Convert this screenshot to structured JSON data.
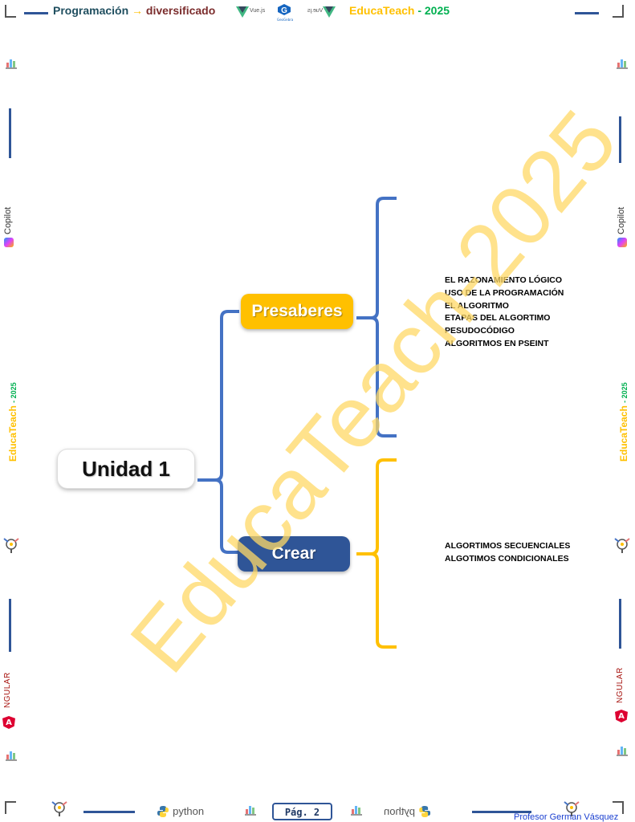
{
  "header": {
    "course": "Programación",
    "arrow": "→",
    "subject": "diversificado",
    "vue_text": "Vue.js",
    "vue_text_mirrored": "Vue.js",
    "brand": "EducaTeach",
    "brand_dash": "-",
    "year": "2025"
  },
  "side": {
    "copilot": "Copilot",
    "brand": "EducaTeach",
    "year": "- 2025",
    "angular": "NGULAR",
    "angular_letter": "A"
  },
  "mindmap": {
    "root": "Unidad 1",
    "branches": [
      {
        "label": "Presaberes",
        "topics": [
          "EL RAZONAMIENTO LÓGICO",
          "USO DE LA PROGRAMACIÓN",
          "EL ALGORITMO",
          "ETAPAS DEL ALGORTIMO",
          "PESUDOCÓDIGO",
          "ALGORITMOS EN PSEINT"
        ]
      },
      {
        "label": "Crear",
        "topics": [
          "ALGORTIMOS SECUENCIALES",
          "ALGOTIMOS CONDICIONALES"
        ]
      }
    ]
  },
  "watermark": "EducaTeach-2025",
  "footer": {
    "python": "python",
    "python_mirrored": "python",
    "page": "Pág. 2",
    "author": "Profesor German Vásquez"
  },
  "colors": {
    "blue": "#4472c4",
    "dark_blue": "#2f5597",
    "yellow": "#ffc000",
    "green": "#00b050",
    "maroon": "#7b2c2c",
    "teal": "#1f4e5f",
    "watermark": "#ffd966"
  }
}
